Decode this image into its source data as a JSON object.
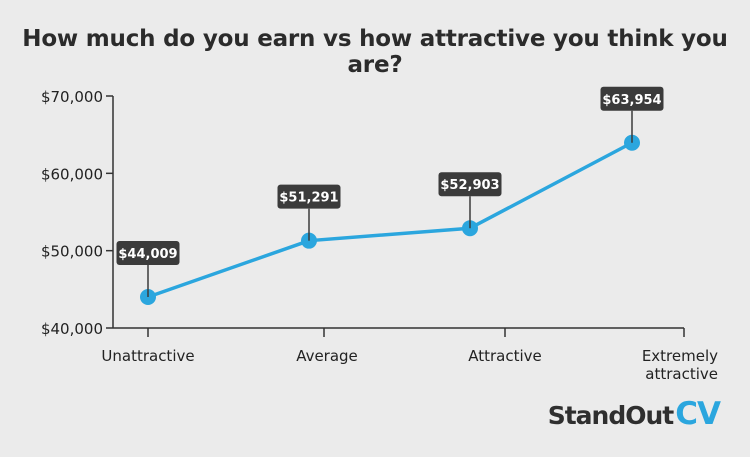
{
  "chart_data": {
    "type": "line",
    "title": "How much do you earn vs how attractive you think you are?",
    "categories": [
      "Unattractive",
      "Average",
      "Attractive",
      "Extremely attractive"
    ],
    "category_lines": [
      [
        "Unattractive"
      ],
      [
        "Average"
      ],
      [
        "Attractive"
      ],
      [
        "Extremely",
        "attractive"
      ]
    ],
    "values": [
      44009,
      51291,
      52903,
      63954
    ],
    "data_labels": [
      "$44,009",
      "$51,291",
      "$52,903",
      "$63,954"
    ],
    "y_ticks": [
      40000,
      50000,
      60000,
      70000
    ],
    "y_tick_labels": [
      "$40,000",
      "$50,000",
      "$60,000",
      "$70,000"
    ],
    "ylim": [
      40000,
      70000
    ],
    "grid": false,
    "xlabel": "",
    "ylabel": ""
  },
  "colors": {
    "line": "#2ba6de",
    "label_bg": "#3b3b3b",
    "axis": "#333333"
  },
  "brand": {
    "word": "StandOut",
    "accent": "CV"
  }
}
